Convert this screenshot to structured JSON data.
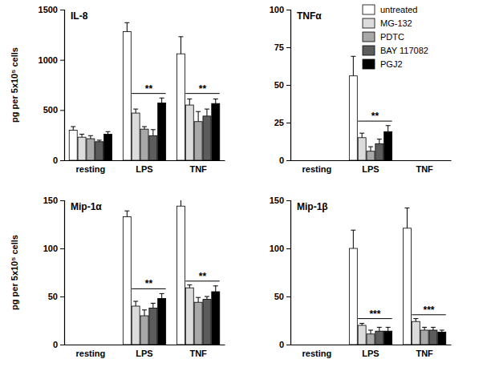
{
  "chart_data": [
    {
      "type": "bar",
      "title": "IL-8",
      "y_label": "pg per 5x10⁵ cells",
      "categories": [
        "resting",
        "LPS",
        "TNF"
      ],
      "ylim": [
        0,
        1500
      ],
      "yticks": [
        0,
        500,
        1000,
        1500
      ],
      "series": [
        {
          "color": "#ffffff",
          "values": [
            300,
            1280,
            1060
          ],
          "errors": [
            35,
            90,
            170
          ]
        },
        {
          "color": "#dcdcdc",
          "values": [
            230,
            470,
            550
          ],
          "errors": [
            30,
            40,
            60
          ]
        },
        {
          "color": "#a8a8a8",
          "values": [
            215,
            310,
            385
          ],
          "errors": [
            30,
            25,
            100
          ]
        },
        {
          "color": "#5c5c5c",
          "values": [
            185,
            245,
            440
          ],
          "errors": [
            15,
            60,
            70
          ]
        },
        {
          "color": "#000000",
          "values": [
            260,
            570,
            565
          ],
          "errors": [
            25,
            50,
            45
          ]
        }
      ],
      "annotations": [
        {
          "text": "**",
          "category": "LPS",
          "y": 665
        },
        {
          "text": "**",
          "category": "TNF",
          "y": 665
        }
      ]
    },
    {
      "type": "bar",
      "title": "TNFα",
      "categories": [
        "resting",
        "LPS",
        "TNF"
      ],
      "ylim": [
        0,
        100
      ],
      "yticks": [
        0,
        25,
        50,
        75,
        100
      ],
      "legend": "top-right",
      "series": [
        {
          "name": "untreated",
          "color": "#ffffff",
          "values": [
            null,
            56,
            null
          ],
          "errors": [
            null,
            13,
            null
          ]
        },
        {
          "name": "MG-132",
          "color": "#dcdcdc",
          "values": [
            null,
            15,
            null
          ],
          "errors": [
            null,
            3,
            null
          ]
        },
        {
          "name": "PDTC",
          "color": "#a8a8a8",
          "values": [
            null,
            6,
            null
          ],
          "errors": [
            null,
            3,
            null
          ]
        },
        {
          "name": "BAY 117082",
          "color": "#5c5c5c",
          "values": [
            null,
            11,
            null
          ],
          "errors": [
            null,
            3,
            null
          ]
        },
        {
          "name": "PGJ2",
          "color": "#000000",
          "values": [
            null,
            19,
            null
          ],
          "errors": [
            null,
            4,
            null
          ]
        }
      ],
      "annotations": [
        {
          "text": "**",
          "category": "LPS",
          "y": 26
        }
      ]
    },
    {
      "type": "bar",
      "title": "Mip-1α",
      "y_label": "pg per 5x10⁵ cells",
      "categories": [
        "resting",
        "LPS",
        "TNF"
      ],
      "ylim": [
        0,
        150
      ],
      "yticks": [
        0,
        50,
        100,
        150
      ],
      "series": [
        {
          "color": "#ffffff",
          "values": [
            null,
            133,
            144
          ],
          "errors": [
            null,
            6,
            13
          ]
        },
        {
          "color": "#dcdcdc",
          "values": [
            null,
            40,
            59
          ],
          "errors": [
            null,
            5,
            3
          ]
        },
        {
          "color": "#a8a8a8",
          "values": [
            null,
            30,
            44
          ],
          "errors": [
            null,
            6,
            5
          ]
        },
        {
          "color": "#5c5c5c",
          "values": [
            null,
            38,
            47
          ],
          "errors": [
            null,
            5,
            3
          ]
        },
        {
          "color": "#000000",
          "values": [
            null,
            48,
            55
          ],
          "errors": [
            null,
            5,
            6
          ]
        }
      ],
      "annotations": [
        {
          "text": "**",
          "category": "LPS",
          "y": 58
        },
        {
          "text": "**",
          "category": "TNF",
          "y": 66
        }
      ]
    },
    {
      "type": "bar",
      "title": "Mip-1β",
      "categories": [
        "resting",
        "LPS",
        "TNF"
      ],
      "ylim": [
        0,
        150
      ],
      "yticks": [
        0,
        50,
        100,
        150
      ],
      "series": [
        {
          "color": "#ffffff",
          "values": [
            null,
            100,
            121
          ],
          "errors": [
            null,
            19,
            21
          ]
        },
        {
          "color": "#dcdcdc",
          "values": [
            null,
            20,
            24
          ],
          "errors": [
            null,
            2,
            3
          ]
        },
        {
          "color": "#a8a8a8",
          "values": [
            null,
            11,
            15
          ],
          "errors": [
            null,
            4,
            3
          ]
        },
        {
          "color": "#5c5c5c",
          "values": [
            null,
            14,
            15
          ],
          "errors": [
            null,
            4,
            3
          ]
        },
        {
          "color": "#000000",
          "values": [
            null,
            14,
            13
          ],
          "errors": [
            null,
            4,
            2
          ]
        }
      ],
      "annotations": [
        {
          "text": "***",
          "category": "LPS",
          "y": 27
        },
        {
          "text": "***",
          "category": "TNF",
          "y": 31
        }
      ]
    }
  ]
}
